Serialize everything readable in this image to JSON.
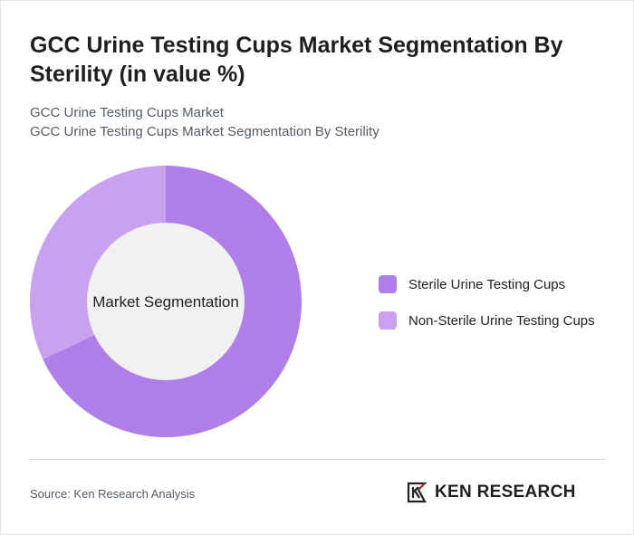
{
  "header": {
    "title": "GCC Urine Testing Cups Market Segmentation By Sterility (in value %)",
    "subtitle_line1": "GCC Urine Testing Cups Market",
    "subtitle_line2": "GCC Urine Testing Cups Market Segmentation By Sterility"
  },
  "chart_data": {
    "type": "pie",
    "variant": "donut",
    "center_label": "Market Segmentation",
    "categories": [
      "Sterile Urine Testing Cups",
      "Non-Sterile Urine Testing Cups"
    ],
    "values": [
      68,
      32
    ],
    "colors": [
      "#b07ee8",
      "#c9a2ef"
    ],
    "legend_placement": "right"
  },
  "footer": {
    "source": "Source: Ken Research Analysis",
    "brand_name": "KEN RESEARCH",
    "brand_logo_icon": "ken-research-logo-icon"
  }
}
